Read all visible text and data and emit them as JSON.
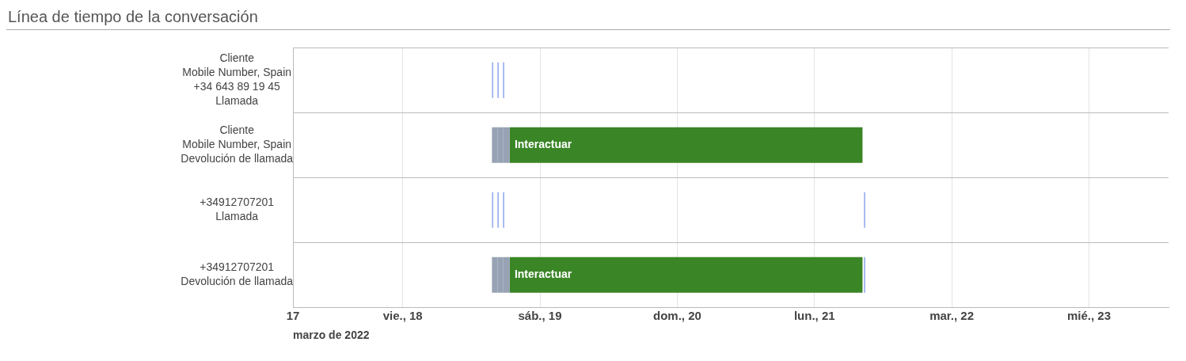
{
  "chart_data": {
    "type": "bar",
    "orientation": "horizontal",
    "title": "Línea de tiempo de la conversación",
    "xlabel": "marzo de 2022",
    "categories": [
      "Cliente\nMobile Number, Spain\n+34 643 89 19 45\nLlamada",
      "Cliente\nMobile Number, Spain\nDevolución de llamada",
      "+34912707201\nLlamada",
      "+34912707201\nDevolución de llamada"
    ],
    "xlim": [
      17.2,
      23.58
    ],
    "xticks": [
      {
        "value": 17.2,
        "label": "17"
      },
      {
        "value": 18,
        "label": "vie., 18"
      },
      {
        "value": 19,
        "label": "sáb., 19"
      },
      {
        "value": 20,
        "label": "dom., 20"
      },
      {
        "value": 21,
        "label": "lun., 21"
      },
      {
        "value": 22,
        "label": "mar., 22"
      },
      {
        "value": 23,
        "label": "mié., 23"
      }
    ],
    "grid": true,
    "legend": false,
    "series": [
      {
        "color": "#9bb1f0",
        "base": [
          18.65,
          null,
          18.65,
          null
        ],
        "values": [
          0.01,
          null,
          0.01,
          null
        ]
      },
      {
        "color": "#9bb1f0",
        "base": [
          18.69,
          null,
          18.69,
          null
        ],
        "values": [
          0.01,
          null,
          0.01,
          null
        ]
      },
      {
        "color": "#9bb1f0",
        "base": [
          18.73,
          null,
          18.73,
          null
        ],
        "values": [
          0.01,
          null,
          0.01,
          null
        ]
      },
      {
        "color": "#97a3b4",
        "base": [
          null,
          18.65,
          null,
          18.65
        ],
        "values": [
          null,
          0.04,
          null,
          0.04
        ]
      },
      {
        "color": "#97a3b4",
        "base": [
          null,
          18.69,
          null,
          18.69
        ],
        "values": [
          null,
          0.04,
          null,
          0.04
        ]
      },
      {
        "color": "#97a3b4",
        "base": [
          null,
          18.73,
          null,
          18.73
        ],
        "values": [
          null,
          0.05,
          null,
          0.05
        ]
      },
      {
        "color": "#3a8526",
        "base": [
          null,
          18.78,
          null,
          18.78
        ],
        "values": [
          null,
          2.57,
          null,
          2.57
        ],
        "value_labels": [
          null,
          "Interactuar",
          null,
          "Interactuar"
        ]
      },
      {
        "color": "#9bb1f0",
        "base": [
          null,
          null,
          21.36,
          21.36
        ],
        "values": [
          null,
          null,
          0.01,
          0.01
        ]
      }
    ]
  }
}
